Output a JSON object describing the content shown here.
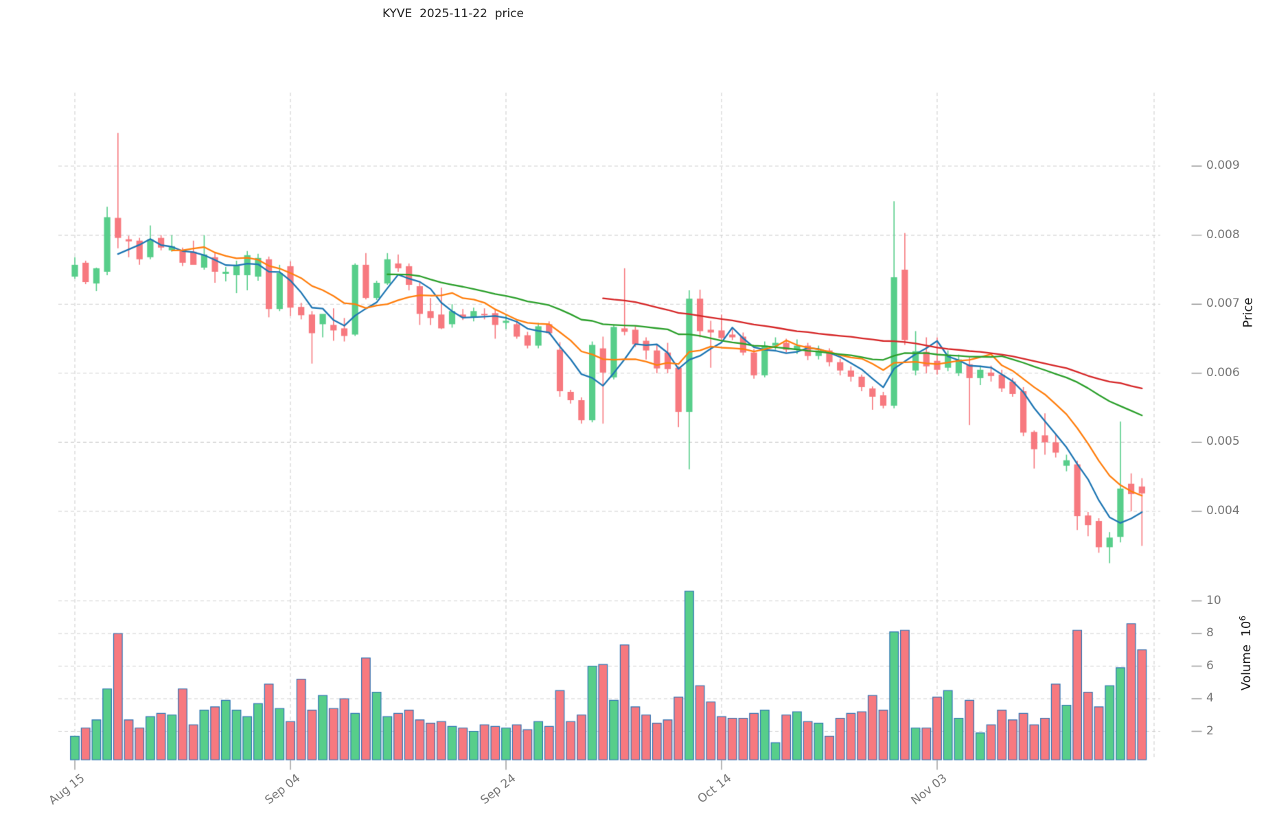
{
  "figure": {
    "title": "KYVE  2025-11-22  price",
    "background": "#ffffff"
  },
  "price_axis": {
    "label": "Price",
    "side": "right",
    "ticks": [
      {
        "label": "0.004",
        "value": 0.004
      },
      {
        "label": "0.005",
        "value": 0.005
      },
      {
        "label": "0.006",
        "value": 0.006
      },
      {
        "label": "0.007",
        "value": 0.007
      },
      {
        "label": "0.008",
        "value": 0.008
      },
      {
        "label": "0.009",
        "value": 0.009
      }
    ]
  },
  "volume_axis": {
    "label": "Volume",
    "base": "10",
    "exponent": "6",
    "side": "right",
    "ticks": [
      {
        "label": "2",
        "value": 2
      },
      {
        "label": "4",
        "value": 4
      },
      {
        "label": "6",
        "value": 6
      },
      {
        "label": "8",
        "value": 8
      },
      {
        "label": "10",
        "value": 10
      }
    ]
  },
  "x_axis": {
    "ticks": [
      {
        "label": "Aug 15",
        "date": "2025-08-15"
      },
      {
        "label": "Sep 04",
        "date": "2025-09-04"
      },
      {
        "label": "Sep 24",
        "date": "2025-09-24"
      },
      {
        "label": "Oct 14",
        "date": "2025-10-14"
      },
      {
        "label": "Nov 03",
        "date": "2025-11-03"
      }
    ]
  },
  "style": {
    "up_color": "#57CE8A",
    "down_color": "#F7797F",
    "volume_edge_color": "#2E74B5",
    "grid_color": "#CFCFCF",
    "tick_text_color": "#757575",
    "ma_colors": [
      "#1f77b4",
      "#ff7f0e",
      "#2ca02c",
      "#d62728"
    ]
  },
  "chart_data": {
    "type": "candlestick+volume",
    "symbol": "KYVE",
    "as_of_date": "2025-11-22",
    "title": "KYVE  2025-11-22  price",
    "ylabel": "Price",
    "ylabel_volume": "Volume 10^6",
    "price_ylim": [
      0.0033,
      0.01
    ],
    "volume_ylim": [
      0,
      11.9
    ],
    "volume_unit": 1000000,
    "grid": "dashed",
    "legend_position": "none",
    "indicators": [
      {
        "name": "MA5",
        "window": 5,
        "color": "#1f77b4"
      },
      {
        "name": "MA10",
        "window": 10,
        "color": "#ff7f0e"
      },
      {
        "name": "MA30",
        "window": 30,
        "color": "#2ca02c"
      },
      {
        "name": "MA50",
        "window": 50,
        "color": "#d62728"
      }
    ],
    "columns": [
      "date",
      "open",
      "high",
      "low",
      "close",
      "volume_millions"
    ],
    "candles": [
      [
        "2025-08-15",
        0.0074,
        0.00768,
        0.00737,
        0.00757,
        1.7
      ],
      [
        "2025-08-16",
        0.0076,
        0.00763,
        0.00729,
        0.00732,
        2.2
      ],
      [
        "2025-08-17",
        0.0073,
        0.00753,
        0.00719,
        0.00752,
        2.7
      ],
      [
        "2025-08-18",
        0.00747,
        0.00841,
        0.00742,
        0.00826,
        4.6
      ],
      [
        "2025-08-19",
        0.00825,
        0.00948,
        0.00781,
        0.00796,
        8.0
      ],
      [
        "2025-08-20",
        0.00794,
        0.00799,
        0.00768,
        0.00791,
        2.7
      ],
      [
        "2025-08-21",
        0.00792,
        0.00796,
        0.00757,
        0.00765,
        2.2
      ],
      [
        "2025-08-22",
        0.00768,
        0.00814,
        0.00765,
        0.00794,
        2.9
      ],
      [
        "2025-08-23",
        0.00796,
        0.008,
        0.00778,
        0.00782,
        3.1
      ],
      [
        "2025-08-24",
        0.00778,
        0.008,
        0.00776,
        0.00784,
        3.0
      ],
      [
        "2025-08-25",
        0.00777,
        0.00782,
        0.00755,
        0.0076,
        4.6
      ],
      [
        "2025-08-26",
        0.00776,
        0.00792,
        0.00758,
        0.00757,
        2.4
      ],
      [
        "2025-08-27",
        0.00753,
        0.008,
        0.0075,
        0.00772,
        3.3
      ],
      [
        "2025-08-28",
        0.00768,
        0.00774,
        0.00731,
        0.00747,
        3.5
      ],
      [
        "2025-08-29",
        0.00744,
        0.00754,
        0.00733,
        0.00747,
        3.9
      ],
      [
        "2025-08-30",
        0.00742,
        0.00763,
        0.00716,
        0.00757,
        3.3
      ],
      [
        "2025-08-31",
        0.00742,
        0.00777,
        0.0072,
        0.00771,
        2.9
      ],
      [
        "2025-09-01",
        0.0074,
        0.00773,
        0.00734,
        0.00767,
        3.7
      ],
      [
        "2025-09-02",
        0.00765,
        0.00769,
        0.00681,
        0.00693,
        4.9
      ],
      [
        "2025-09-03",
        0.00693,
        0.00757,
        0.0069,
        0.00745,
        3.4
      ],
      [
        "2025-09-04",
        0.00755,
        0.00762,
        0.00683,
        0.00695,
        2.6
      ],
      [
        "2025-09-05",
        0.00696,
        0.00702,
        0.00678,
        0.00684,
        5.2
      ],
      [
        "2025-09-06",
        0.00685,
        0.0069,
        0.00614,
        0.00658,
        3.3
      ],
      [
        "2025-09-07",
        0.00671,
        0.00676,
        0.00652,
        0.00686,
        4.2
      ],
      [
        "2025-09-08",
        0.0067,
        0.00694,
        0.00647,
        0.00662,
        3.4
      ],
      [
        "2025-09-09",
        0.00665,
        0.0068,
        0.00646,
        0.00654,
        4.0
      ],
      [
        "2025-09-10",
        0.00656,
        0.00759,
        0.00654,
        0.00757,
        3.1
      ],
      [
        "2025-09-11",
        0.00757,
        0.00774,
        0.00707,
        0.00709,
        6.5
      ],
      [
        "2025-09-12",
        0.00709,
        0.00734,
        0.00706,
        0.00731,
        4.4
      ],
      [
        "2025-09-13",
        0.0073,
        0.00774,
        0.00728,
        0.00765,
        2.9
      ],
      [
        "2025-09-14",
        0.00759,
        0.00772,
        0.00747,
        0.00752,
        3.1
      ],
      [
        "2025-09-15",
        0.00755,
        0.00759,
        0.0072,
        0.00728,
        3.3
      ],
      [
        "2025-09-16",
        0.00726,
        0.00731,
        0.0067,
        0.00686,
        2.7
      ],
      [
        "2025-09-17",
        0.0069,
        0.00709,
        0.0067,
        0.0068,
        2.5
      ],
      [
        "2025-09-18",
        0.00685,
        0.00724,
        0.00664,
        0.00665,
        2.6
      ],
      [
        "2025-09-19",
        0.00671,
        0.007,
        0.00666,
        0.0069,
        2.3
      ],
      [
        "2025-09-20",
        0.00685,
        0.00693,
        0.00677,
        0.00681,
        2.2
      ],
      [
        "2025-09-21",
        0.00681,
        0.00695,
        0.00675,
        0.0069,
        2.0
      ],
      [
        "2025-09-22",
        0.00686,
        0.00694,
        0.00678,
        0.00684,
        2.4
      ],
      [
        "2025-09-23",
        0.00687,
        0.00693,
        0.0065,
        0.0067,
        2.3
      ],
      [
        "2025-09-24",
        0.00673,
        0.00684,
        0.00664,
        0.00676,
        2.2
      ],
      [
        "2025-09-25",
        0.00671,
        0.00676,
        0.0065,
        0.00653,
        2.4
      ],
      [
        "2025-09-26",
        0.00655,
        0.0066,
        0.00636,
        0.0064,
        2.1
      ],
      [
        "2025-09-27",
        0.0064,
        0.00673,
        0.00636,
        0.00668,
        2.6
      ],
      [
        "2025-09-28",
        0.00671,
        0.00675,
        0.00656,
        0.00658,
        2.3
      ],
      [
        "2025-09-29",
        0.00634,
        0.00645,
        0.00566,
        0.00574,
        4.5
      ],
      [
        "2025-09-30",
        0.00573,
        0.00576,
        0.00556,
        0.00561,
        2.6
      ],
      [
        "2025-10-01",
        0.00561,
        0.00565,
        0.00527,
        0.00532,
        3.0
      ],
      [
        "2025-10-02",
        0.00532,
        0.00646,
        0.00529,
        0.00641,
        6.0
      ],
      [
        "2025-10-03",
        0.00636,
        0.00653,
        0.00527,
        0.00601,
        6.1
      ],
      [
        "2025-10-04",
        0.00594,
        0.0067,
        0.00591,
        0.00667,
        3.9
      ],
      [
        "2025-10-05",
        0.00665,
        0.00752,
        0.00655,
        0.0066,
        7.3
      ],
      [
        "2025-10-06",
        0.00663,
        0.00668,
        0.00638,
        0.00642,
        3.5
      ],
      [
        "2025-10-07",
        0.00647,
        0.00652,
        0.0062,
        0.00633,
        3.0
      ],
      [
        "2025-10-08",
        0.00633,
        0.00642,
        0.006,
        0.00607,
        2.5
      ],
      [
        "2025-10-09",
        0.0063,
        0.00644,
        0.006,
        0.00606,
        2.7
      ],
      [
        "2025-10-10",
        0.00608,
        0.0061,
        0.00522,
        0.00544,
        4.1
      ],
      [
        "2025-10-11",
        0.00544,
        0.0072,
        0.00461,
        0.00708,
        10.6
      ],
      [
        "2025-10-12",
        0.00708,
        0.00721,
        0.00652,
        0.00661,
        4.8
      ],
      [
        "2025-10-13",
        0.00663,
        0.00676,
        0.00608,
        0.00659,
        3.8
      ],
      [
        "2025-10-14",
        0.00662,
        0.00685,
        0.00648,
        0.00651,
        2.9
      ],
      [
        "2025-10-15",
        0.00656,
        0.00666,
        0.00648,
        0.00652,
        2.8
      ],
      [
        "2025-10-16",
        0.00653,
        0.00659,
        0.00626,
        0.0063,
        2.8
      ],
      [
        "2025-10-17",
        0.0063,
        0.00635,
        0.00592,
        0.00597,
        3.1
      ],
      [
        "2025-10-18",
        0.00597,
        0.00646,
        0.00594,
        0.0064,
        3.3
      ],
      [
        "2025-10-19",
        0.0064,
        0.00652,
        0.00634,
        0.00644,
        1.3
      ],
      [
        "2025-10-20",
        0.00644,
        0.0065,
        0.0063,
        0.00634,
        3.0
      ],
      [
        "2025-10-21",
        0.00634,
        0.00649,
        0.00628,
        0.0064,
        3.2
      ],
      [
        "2025-10-22",
        0.0064,
        0.00644,
        0.00619,
        0.00625,
        2.6
      ],
      [
        "2025-10-23",
        0.00625,
        0.0064,
        0.0062,
        0.00633,
        2.5
      ],
      [
        "2025-10-24",
        0.00633,
        0.00636,
        0.0061,
        0.00616,
        1.7
      ],
      [
        "2025-10-25",
        0.00616,
        0.00621,
        0.00597,
        0.00604,
        2.8
      ],
      [
        "2025-10-26",
        0.00604,
        0.0061,
        0.00588,
        0.00595,
        3.1
      ],
      [
        "2025-10-27",
        0.00595,
        0.00598,
        0.00574,
        0.0058,
        3.2
      ],
      [
        "2025-10-28",
        0.00578,
        0.00581,
        0.00547,
        0.00566,
        4.2
      ],
      [
        "2025-10-29",
        0.00568,
        0.00573,
        0.00549,
        0.00553,
        3.3
      ],
      [
        "2025-10-30",
        0.00553,
        0.00849,
        0.00549,
        0.00739,
        8.1
      ],
      [
        "2025-10-31",
        0.0075,
        0.00803,
        0.00641,
        0.00648,
        8.2
      ],
      [
        "2025-11-01",
        0.00604,
        0.00661,
        0.00597,
        0.00632,
        2.2
      ],
      [
        "2025-11-02",
        0.00631,
        0.00652,
        0.006,
        0.0061,
        2.2
      ],
      [
        "2025-11-03",
        0.00618,
        0.00652,
        0.00598,
        0.00605,
        4.1
      ],
      [
        "2025-11-04",
        0.00608,
        0.00633,
        0.00603,
        0.00627,
        4.5
      ],
      [
        "2025-11-05",
        0.006,
        0.00627,
        0.00596,
        0.0062,
        2.8
      ],
      [
        "2025-11-06",
        0.00613,
        0.00623,
        0.00525,
        0.00593,
        3.9
      ],
      [
        "2025-11-07",
        0.00593,
        0.00611,
        0.00583,
        0.00605,
        1.9
      ],
      [
        "2025-11-08",
        0.00601,
        0.00611,
        0.00588,
        0.00596,
        2.4
      ],
      [
        "2025-11-09",
        0.00598,
        0.00605,
        0.00573,
        0.00578,
        3.3
      ],
      [
        "2025-11-10",
        0.00588,
        0.00593,
        0.00566,
        0.0057,
        2.7
      ],
      [
        "2025-11-11",
        0.00574,
        0.0058,
        0.00509,
        0.00514,
        3.1
      ],
      [
        "2025-11-12",
        0.00515,
        0.00517,
        0.00462,
        0.0049,
        2.4
      ],
      [
        "2025-11-13",
        0.0051,
        0.00542,
        0.00482,
        0.005,
        2.8
      ],
      [
        "2025-11-14",
        0.005,
        0.00512,
        0.00478,
        0.00485,
        4.9
      ],
      [
        "2025-11-15",
        0.00466,
        0.00482,
        0.00458,
        0.00474,
        3.6
      ],
      [
        "2025-11-16",
        0.00468,
        0.00473,
        0.00373,
        0.00393,
        8.2
      ],
      [
        "2025-11-17",
        0.00394,
        0.00399,
        0.00364,
        0.0038,
        4.4
      ],
      [
        "2025-11-18",
        0.00386,
        0.0039,
        0.0034,
        0.00348,
        3.5
      ],
      [
        "2025-11-19",
        0.00348,
        0.0037,
        0.00325,
        0.00362,
        4.8
      ],
      [
        "2025-11-20",
        0.00363,
        0.0053,
        0.00355,
        0.00433,
        5.9
      ],
      [
        "2025-11-21",
        0.0044,
        0.00455,
        0.004,
        0.00425,
        8.6
      ],
      [
        "2025-11-22",
        0.00436,
        0.00448,
        0.0035,
        0.00426,
        7.0
      ]
    ]
  }
}
